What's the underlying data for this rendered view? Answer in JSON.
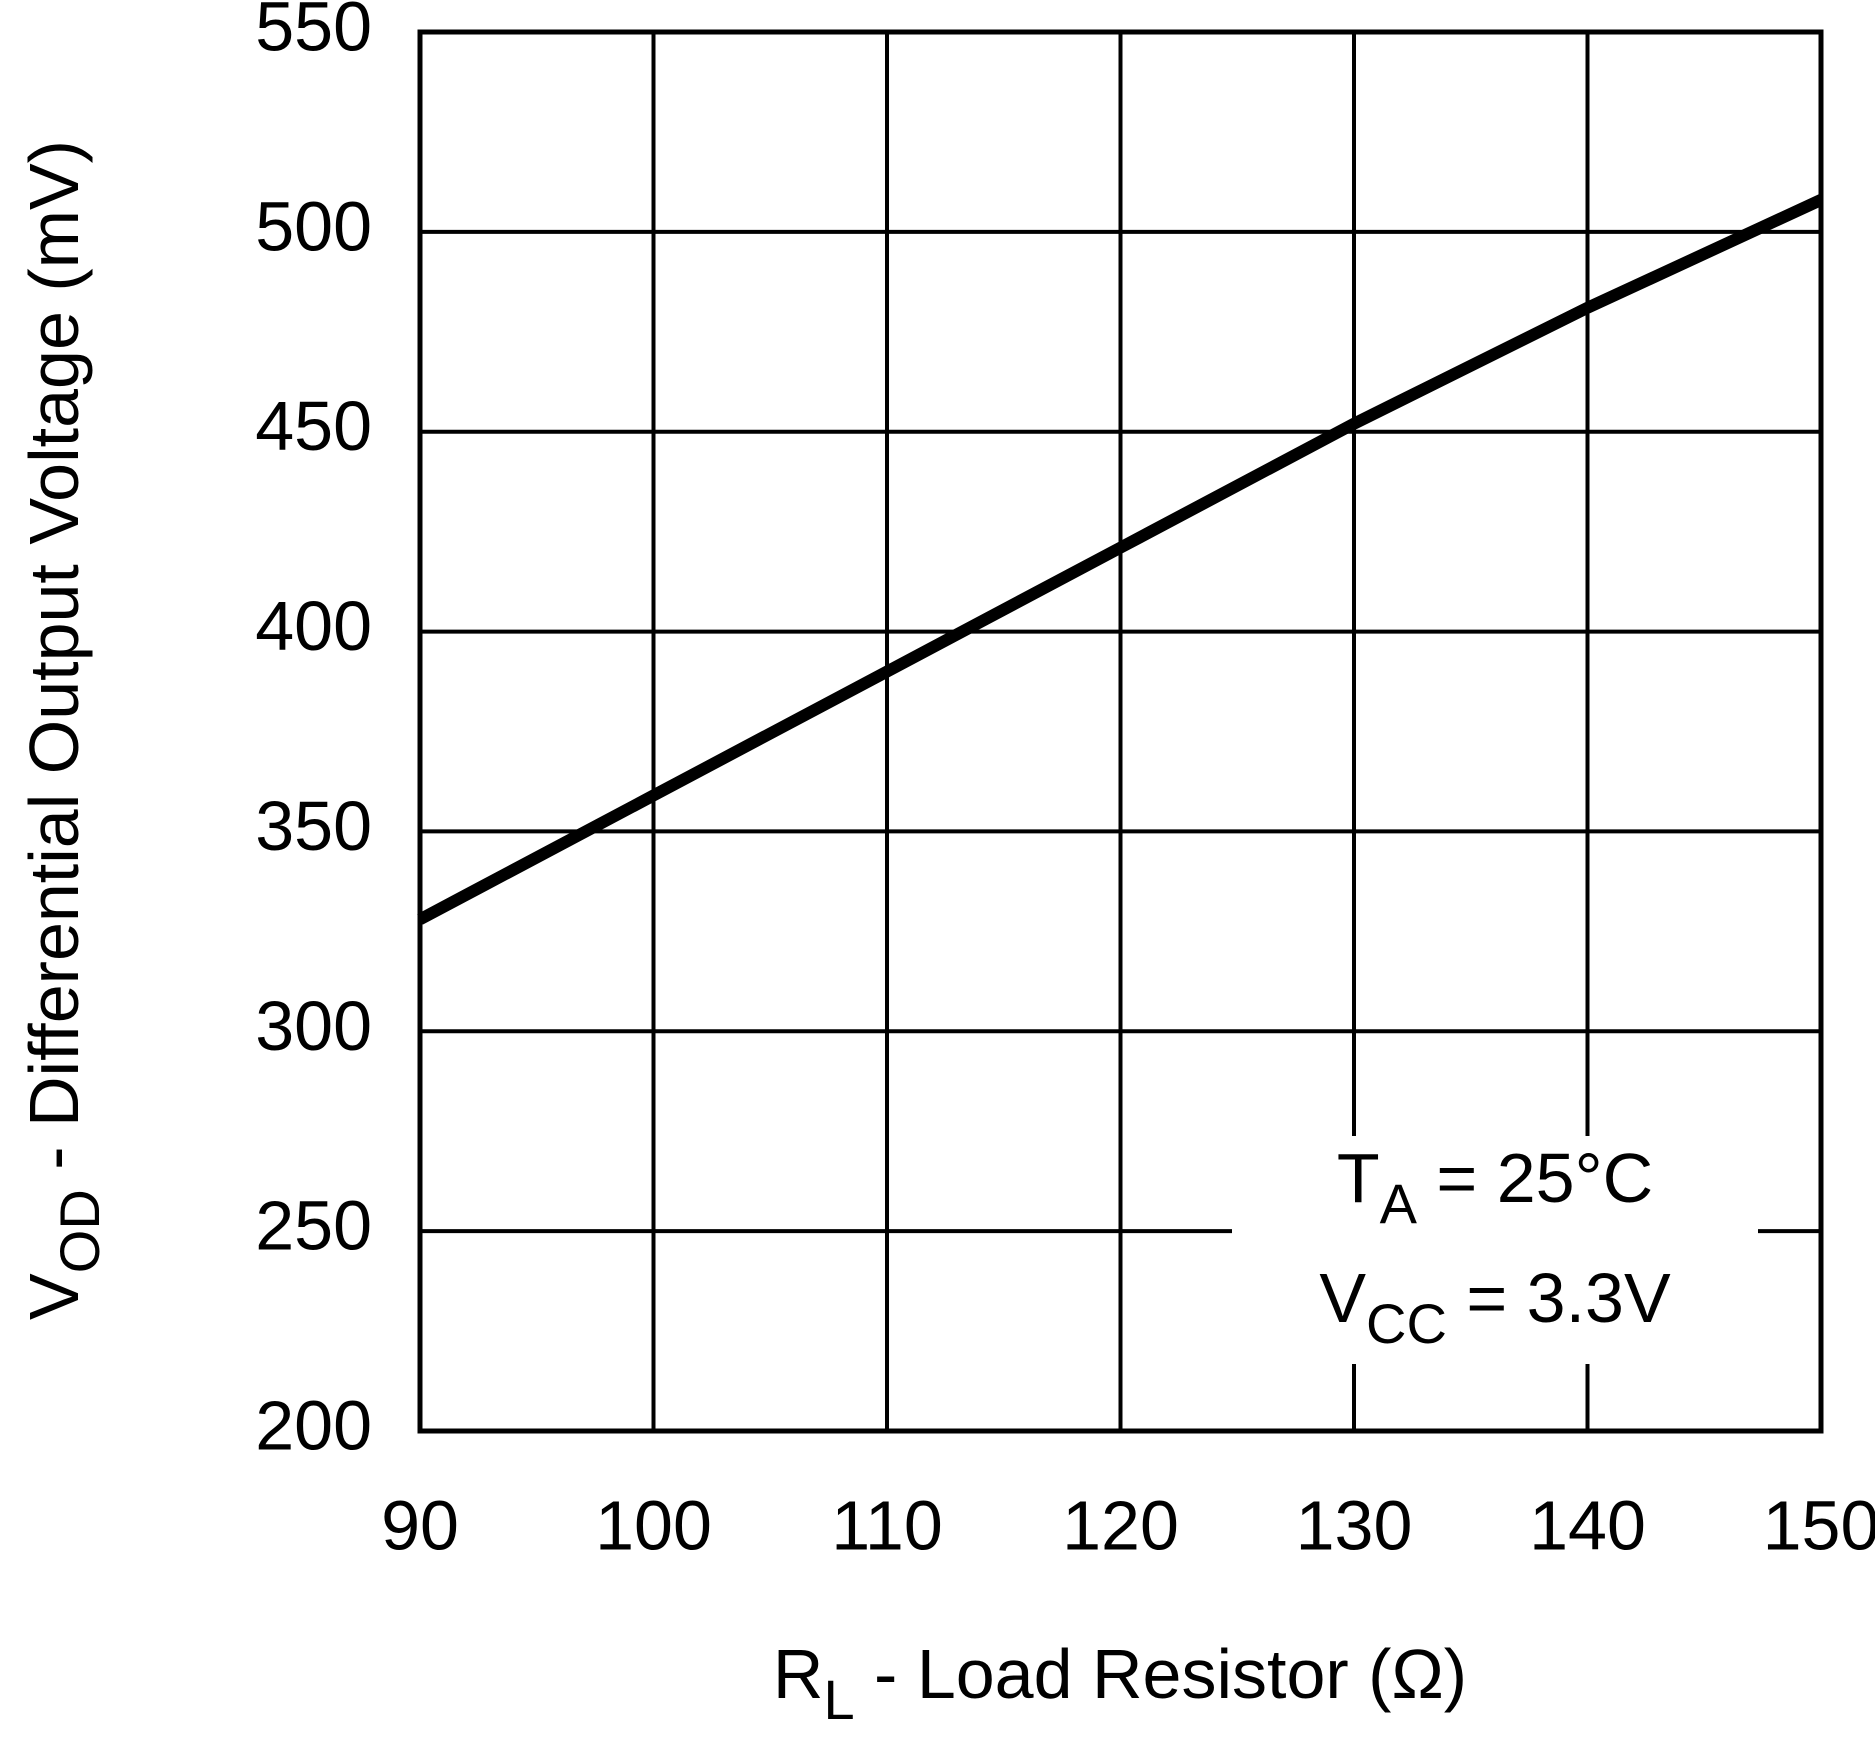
{
  "chart_data": {
    "type": "line",
    "x": [
      90,
      100,
      110,
      120,
      130,
      140,
      150
    ],
    "series": [
      {
        "color": "#000000",
        "values": [
          328,
          359,
          390,
          421,
          452,
          481,
          508
        ]
      }
    ],
    "xlim": [
      90,
      150
    ],
    "xticks": [
      90,
      100,
      110,
      120,
      130,
      140,
      150
    ],
    "ylim": [
      200,
      550
    ],
    "yticks": [
      200,
      250,
      300,
      350,
      400,
      450,
      500,
      550
    ],
    "grid": true,
    "xlabel": {
      "symbol": "R",
      "sub": "L",
      "text": " - Load Resistor (Ω)"
    },
    "ylabel": {
      "symbol": "V",
      "sub": "OD",
      "text": " - Differential Output Voltage (mV)"
    },
    "annotations": [
      {
        "symbol": "T",
        "sub": "A",
        "text": " = 25°C"
      },
      {
        "symbol": "V",
        "sub": "CC",
        "text": " = 3.3V"
      }
    ]
  }
}
